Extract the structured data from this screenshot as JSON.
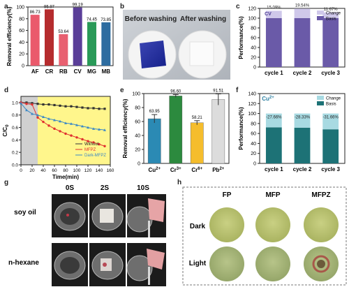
{
  "panel_letters": {
    "a": "a",
    "b": "b",
    "c": "c",
    "d": "d",
    "e": "e",
    "f": "f",
    "g": "g",
    "h": "h"
  },
  "chart_data": [
    {
      "id": "a",
      "type": "bar",
      "ylabel": "Removal efficiency(%)",
      "ylim": [
        0,
        100
      ],
      "yticks": [
        0,
        20,
        40,
        60,
        80,
        100
      ],
      "categories": [
        "AF",
        "CR",
        "RB",
        "CV",
        "MG",
        "MB"
      ],
      "values": [
        86.73,
        95.97,
        53.64,
        99.19,
        74.45,
        73.85
      ],
      "data_labels": [
        "86.73",
        "95.97",
        "53.64",
        "99.19",
        "74.45",
        "73.85"
      ],
      "colors": [
        "#ea5a6c",
        "#b52c2e",
        "#e86070",
        "#5a3e98",
        "#2a9a58",
        "#2d6ca0"
      ]
    },
    {
      "id": "c",
      "type": "bar",
      "ylabel": "Performance(%)",
      "ylim": [
        0,
        120
      ],
      "yticks": [
        0,
        20,
        40,
        60,
        80,
        100,
        120
      ],
      "categories": [
        "cycle 1",
        "cycle 2",
        "cycle 3"
      ],
      "annotation": "CV",
      "series": [
        {
          "name": "Basis",
          "values": [
            100,
            100,
            100
          ],
          "color": "#6a5aa8"
        },
        {
          "name": "Change",
          "values": [
            15.09,
            19.54,
            11.67
          ],
          "color": "#cfc8ea"
        }
      ],
      "data_labels": [
        "15.09%",
        "19.54%",
        "11.67%"
      ],
      "legend": "top-right"
    },
    {
      "id": "d",
      "type": "line",
      "xlabel": "Time(min)",
      "ylabel": "C/C0",
      "xlim": [
        0,
        160
      ],
      "ylim": [
        0,
        1.1
      ],
      "xticks": [
        0,
        20,
        40,
        60,
        80,
        100,
        120,
        140,
        160
      ],
      "yticks": [
        0.0,
        0.2,
        0.4,
        0.6,
        0.8,
        1.0
      ],
      "shaded_regions": [
        {
          "from": 0,
          "to": 30,
          "color": "#d0d0d0"
        },
        {
          "from": 30,
          "to": 160,
          "color": "#fff68c"
        }
      ],
      "legend": "bottom-right",
      "series": [
        {
          "name": "Without",
          "color": "#333333",
          "marker": "square",
          "x": [
            0,
            10,
            20,
            30,
            40,
            50,
            60,
            70,
            80,
            90,
            100,
            110,
            120,
            130,
            140,
            150
          ],
          "y": [
            1.0,
            1.0,
            0.99,
            0.98,
            0.97,
            0.97,
            0.96,
            0.95,
            0.94,
            0.94,
            0.93,
            0.92,
            0.91,
            0.91,
            0.9,
            0.9
          ]
        },
        {
          "name": "MFPZ",
          "color": "#e03030",
          "marker": "circle",
          "x": [
            0,
            10,
            20,
            30,
            40,
            50,
            60,
            70,
            80,
            90,
            100,
            110,
            120,
            130,
            140,
            150
          ],
          "y": [
            1.0,
            0.98,
            0.97,
            0.76,
            0.69,
            0.63,
            0.58,
            0.54,
            0.5,
            0.47,
            0.44,
            0.41,
            0.38,
            0.36,
            0.33,
            0.3
          ]
        },
        {
          "name": "Dark-MFPZ",
          "color": "#3a88c6",
          "marker": "triangle",
          "x": [
            0,
            10,
            20,
            30,
            40,
            50,
            60,
            70,
            80,
            90,
            100,
            110,
            120,
            130,
            140,
            150
          ],
          "y": [
            0.99,
            0.88,
            0.82,
            0.8,
            0.77,
            0.74,
            0.72,
            0.7,
            0.67,
            0.66,
            0.64,
            0.62,
            0.6,
            0.58,
            0.57,
            0.56
          ]
        }
      ]
    },
    {
      "id": "e",
      "type": "bar",
      "ylabel": "Removal efficiency(%)",
      "ylim": [
        0,
        100
      ],
      "yticks": [
        0,
        20,
        40,
        60,
        80,
        100
      ],
      "categories": [
        "Cu2+",
        "Cr3+",
        "Cr6+",
        "Pb2+"
      ],
      "values": [
        63.95,
        96.6,
        58.21,
        91.51
      ],
      "errors": [
        6,
        2,
        3,
        8
      ],
      "data_labels": [
        "63.95",
        "96.60",
        "58.21",
        "91.51"
      ],
      "colors": [
        "#2b8ab4",
        "#2c8a3e",
        "#f5bd2c",
        "#dcdcdc"
      ]
    },
    {
      "id": "f",
      "type": "bar",
      "ylabel": "Performance(%)",
      "ylim": [
        0,
        140
      ],
      "yticks": [
        0,
        20,
        40,
        60,
        80,
        100,
        120,
        140
      ],
      "categories": [
        "cycle 1",
        "cycle 2",
        "cycle 3"
      ],
      "annotation": "Cu2+",
      "series": [
        {
          "name": "Basis",
          "values": [
            72.34,
            71.67,
            68.34
          ],
          "color": "#1d7276"
        },
        {
          "name": "Change",
          "values": [
            27.66,
            28.33,
            31.66
          ],
          "color": "#a8dae2"
        }
      ],
      "data_labels": [
        "-27.66%",
        "-28.33%",
        "-31.66%"
      ],
      "legend": "top-right"
    }
  ],
  "photo_b": {
    "before_label": "Before washing",
    "after_label": "After washing"
  },
  "photo_g": {
    "col_labels": [
      "0S",
      "2S",
      "10S"
    ],
    "row_labels": [
      "soy oil",
      "n-hexane"
    ]
  },
  "photo_h": {
    "col_labels": [
      "FP",
      "MFP",
      "MFPZ"
    ],
    "row_labels": [
      "Dark",
      "Light"
    ]
  }
}
